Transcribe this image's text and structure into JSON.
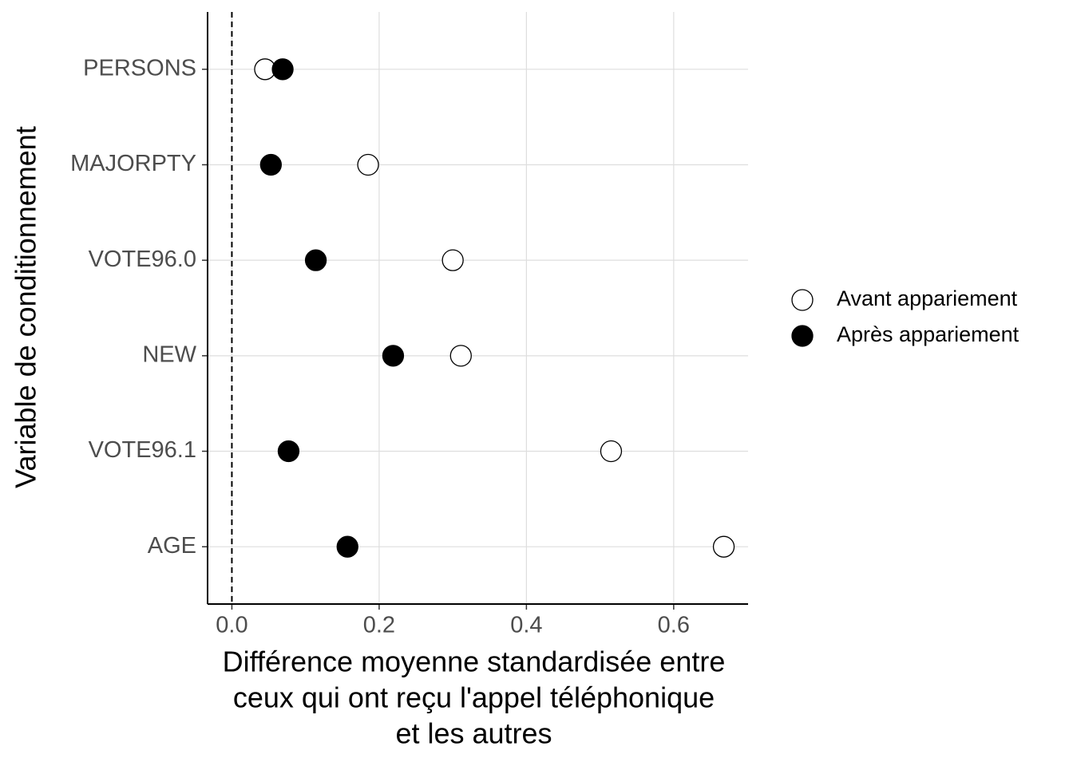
{
  "chart_data": {
    "type": "scatter",
    "categories": [
      "PERSONS",
      "MAJORPTY",
      "VOTE96.0",
      "NEW",
      "VOTE96.1",
      "AGE"
    ],
    "series": [
      {
        "name": "Avant appariement",
        "color": "#ffffff",
        "values": [
          0.045,
          0.185,
          0.3,
          0.311,
          0.515,
          0.668
        ]
      },
      {
        "name": "Après appariement",
        "color": "#000000",
        "values": [
          0.069,
          0.053,
          0.114,
          0.219,
          0.077,
          0.157
        ]
      }
    ],
    "xlim": [
      -0.033,
      0.701
    ],
    "xticks": [
      {
        "value": 0,
        "label": "0.0"
      },
      0.2,
      0.4,
      0.6
    ],
    "reference_line": 0,
    "x_label": [
      "Différence moyenne standardisée entre",
      "ceux qui ont reçu l'appel téléphonique",
      "et les autres"
    ],
    "y_label": "Variable de conditionnement",
    "grid": true,
    "legend": "right"
  }
}
